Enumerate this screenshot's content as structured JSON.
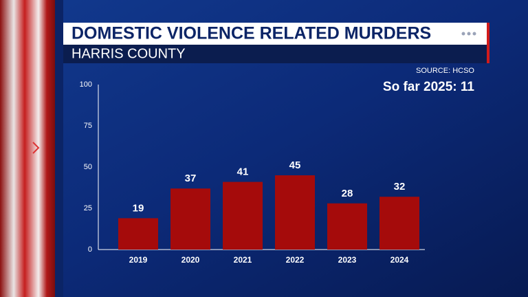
{
  "chart_data": {
    "type": "bar",
    "title": "DOMESTIC VIOLENCE RELATED MURDERS",
    "subtitle": "HARRIS COUNTY",
    "source": "SOURCE: HCSO",
    "annotation": "So far 2025: 11",
    "categories": [
      "2019",
      "2020",
      "2021",
      "2022",
      "2023",
      "2024"
    ],
    "values": [
      19,
      37,
      41,
      45,
      28,
      32
    ],
    "color": "#a50b0b",
    "ylim": [
      0,
      100
    ],
    "yticks": [
      0,
      25,
      50,
      75,
      100
    ],
    "grid": false
  }
}
